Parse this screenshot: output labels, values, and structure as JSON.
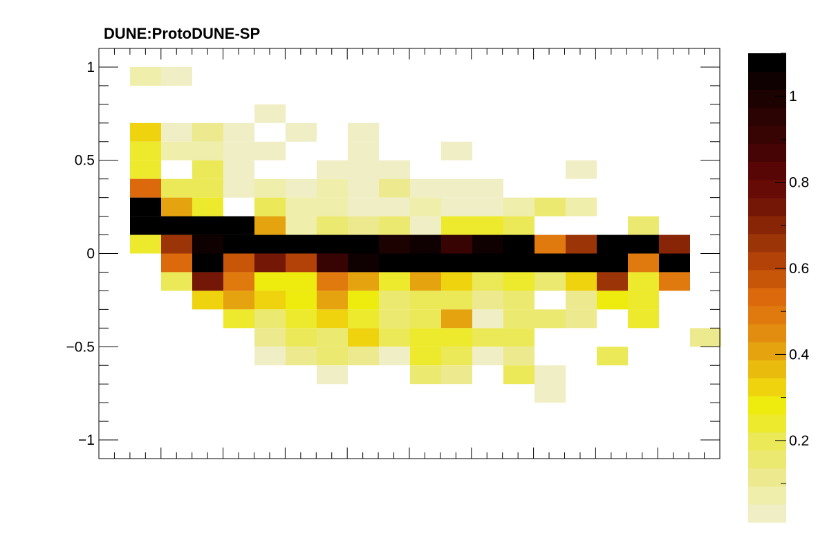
{
  "chart_data": {
    "type": "heatmap",
    "title": "DUNE:ProtoDUNE-SP",
    "xlabel": "",
    "ylabel": "",
    "xlim": [
      0,
      20
    ],
    "ylim": [
      -1.1,
      1.1
    ],
    "x_tick_labels": [],
    "y_ticks": [
      {
        "value": 1,
        "label": "1"
      },
      {
        "value": 0.5,
        "label": "0.5"
      },
      {
        "value": 0,
        "label": "0"
      },
      {
        "value": -0.5,
        "label": "−0.5"
      },
      {
        "value": -1,
        "label": "−1"
      }
    ],
    "y_bins": [
      1.0,
      0.9,
      0.8,
      0.7,
      0.6,
      0.5,
      0.4,
      0.3,
      0.2,
      0.1,
      0.0,
      -0.1,
      -0.2,
      -0.3,
      -0.4,
      -0.5,
      -0.6,
      -0.7,
      -0.8
    ],
    "bin_height": 0.1,
    "z_range": [
      0.01,
      1.1
    ],
    "colorbar_ticks": [
      {
        "value": 1,
        "label": "1"
      },
      {
        "value": 0.8,
        "label": "0.8"
      },
      {
        "value": 0.6,
        "label": "0.6"
      },
      {
        "value": 0.4,
        "label": "0.4"
      },
      {
        "value": 0.2,
        "label": "0.2"
      }
    ],
    "palette": [
      "#f0eec4",
      "#efeeaa",
      "#ede98f",
      "#ece971",
      "#ebe958",
      "#ede92c",
      "#eeeb0e",
      "#eed30e",
      "#e9bb0c",
      "#e6a310",
      "#e38d10",
      "#e07a0f",
      "#dc6a0c",
      "#c85609",
      "#b24208",
      "#9b3407",
      "#872506",
      "#741707",
      "#670b06",
      "#580605",
      "#470404",
      "#380303",
      "#2a0302",
      "#1c0201",
      "#0f0101",
      "#000000"
    ],
    "zgrid": [
      [
        null,
        0.08,
        0.03,
        null,
        null,
        null,
        null,
        null,
        null,
        null,
        null,
        null,
        null,
        null,
        null,
        null,
        null,
        null,
        null,
        null
      ],
      [
        null,
        null,
        null,
        null,
        null,
        null,
        null,
        null,
        null,
        null,
        null,
        null,
        null,
        null,
        null,
        null,
        null,
        null,
        null,
        null
      ],
      [
        null,
        null,
        null,
        null,
        null,
        0.03,
        null,
        null,
        null,
        null,
        null,
        null,
        null,
        null,
        null,
        null,
        null,
        null,
        null,
        null
      ],
      [
        null,
        0.34,
        0.03,
        0.11,
        0.03,
        null,
        0.03,
        null,
        0.03,
        null,
        null,
        null,
        null,
        null,
        null,
        null,
        null,
        null,
        null,
        null
      ],
      [
        null,
        0.26,
        0.08,
        0.08,
        0.03,
        0.03,
        null,
        null,
        0.03,
        null,
        null,
        0.03,
        null,
        null,
        null,
        null,
        null,
        null,
        null,
        null
      ],
      [
        null,
        0.26,
        null,
        0.21,
        0.03,
        null,
        null,
        0.03,
        0.03,
        0.03,
        null,
        null,
        null,
        null,
        null,
        0.03,
        null,
        null,
        null,
        null
      ],
      [
        null,
        0.52,
        0.21,
        0.21,
        0.03,
        0.08,
        0.03,
        0.08,
        0.03,
        0.11,
        0.03,
        0.03,
        0.03,
        null,
        null,
        null,
        null,
        null,
        null,
        null
      ],
      [
        null,
        1.06,
        0.4,
        0.26,
        null,
        0.21,
        0.08,
        0.08,
        0.03,
        0.03,
        0.08,
        0.03,
        0.03,
        0.08,
        0.16,
        0.08,
        null,
        null,
        null,
        null
      ],
      [
        null,
        1.06,
        1.06,
        1.06,
        1.06,
        0.4,
        0.08,
        0.16,
        0.11,
        0.16,
        0.03,
        0.26,
        0.26,
        0.21,
        null,
        null,
        null,
        0.16,
        null,
        null
      ],
      [
        null,
        0.26,
        0.64,
        1.02,
        1.06,
        1.06,
        1.06,
        1.06,
        1.06,
        0.98,
        1.02,
        0.9,
        1.02,
        1.06,
        0.48,
        0.64,
        1.06,
        1.06,
        0.7,
        null
      ],
      [
        null,
        null,
        0.52,
        1.06,
        0.56,
        0.76,
        0.6,
        0.9,
        1.02,
        1.06,
        1.06,
        1.06,
        1.06,
        1.06,
        1.06,
        1.06,
        1.06,
        0.48,
        1.06,
        null
      ],
      [
        null,
        null,
        0.21,
        0.76,
        0.48,
        0.3,
        0.3,
        0.48,
        0.4,
        0.26,
        0.4,
        0.34,
        0.21,
        0.26,
        0.16,
        0.34,
        0.64,
        0.26,
        0.48,
        null
      ],
      [
        null,
        null,
        null,
        0.34,
        0.4,
        0.34,
        0.3,
        0.4,
        0.3,
        0.16,
        0.21,
        0.21,
        0.11,
        0.16,
        null,
        0.11,
        0.3,
        0.26,
        null,
        null
      ],
      [
        null,
        null,
        null,
        null,
        0.26,
        0.16,
        0.26,
        0.34,
        0.26,
        0.16,
        0.21,
        0.4,
        0.03,
        0.16,
        0.16,
        0.11,
        null,
        0.26,
        null,
        null
      ],
      [
        null,
        null,
        null,
        null,
        null,
        0.11,
        0.21,
        0.16,
        0.34,
        0.21,
        0.26,
        0.26,
        0.21,
        0.21,
        null,
        null,
        null,
        null,
        null,
        0.11
      ],
      [
        null,
        null,
        null,
        null,
        null,
        0.03,
        0.11,
        0.16,
        0.11,
        0.03,
        0.26,
        0.21,
        0.03,
        0.11,
        null,
        null,
        0.21,
        null,
        null,
        null
      ],
      [
        null,
        null,
        null,
        null,
        null,
        null,
        null,
        0.03,
        null,
        null,
        0.16,
        0.11,
        null,
        0.21,
        0.03,
        null,
        null,
        null,
        null,
        null
      ],
      [
        null,
        null,
        null,
        null,
        null,
        null,
        null,
        null,
        null,
        null,
        null,
        null,
        null,
        null,
        0.03,
        null,
        null,
        null,
        null,
        null
      ]
    ]
  }
}
